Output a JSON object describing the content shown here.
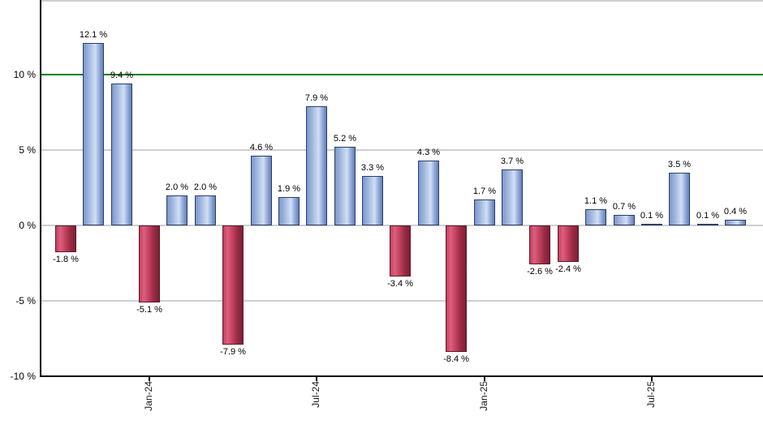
{
  "chart_data": {
    "type": "bar",
    "title": "",
    "xlabel": "",
    "ylabel": "",
    "unit": "%",
    "values": [
      -1.8,
      12.1,
      9.4,
      -5.1,
      2.0,
      2.0,
      -7.9,
      4.6,
      1.9,
      7.9,
      5.2,
      3.3,
      -3.4,
      4.3,
      -8.4,
      1.7,
      3.7,
      -2.6,
      -2.4,
      1.1,
      0.7,
      0.1,
      3.5,
      0.1,
      0.4
    ],
    "bar_labels": [
      "-1.8 %",
      "12.1 %",
      "9.4 %",
      "-5.1 %",
      "2.0 %",
      "2.0 %",
      "-7.9 %",
      "4.6 %",
      "1.9 %",
      "7.9 %",
      "5.2 %",
      "3.3 %",
      "-3.4 %",
      "4.3 %",
      "-8.4 %",
      "1.7 %",
      "3.7 %",
      "-2.6 %",
      "-2.4 %",
      "1.1 %",
      "0.7 %",
      "0.1 %",
      "3.5 %",
      "0.1 %",
      "0.4 %"
    ],
    "x_ticks": [
      {
        "bar_index": 3,
        "label": "Jan-24"
      },
      {
        "bar_index": 9,
        "label": "Jul-24"
      },
      {
        "bar_index": 15,
        "label": "Jan-25"
      },
      {
        "bar_index": 21,
        "label": "Jul-25"
      }
    ],
    "y_ticks": [
      {
        "value": 10,
        "label": "10 %"
      },
      {
        "value": 5,
        "label": "5 %"
      },
      {
        "value": 0,
        "label": "0 %"
      },
      {
        "value": -5,
        "label": "-5 %"
      },
      {
        "value": -10,
        "label": "-10 %"
      }
    ],
    "ylim": [
      -10,
      15
    ],
    "gridlines_at": [
      15,
      5,
      0,
      -5
    ],
    "marker_line": {
      "value": 10,
      "color": "#007f00"
    },
    "legend": "none",
    "grid": "horizontal",
    "colors": {
      "positive_fill_stops": [
        "#7d97cb",
        "#a3badf",
        "#d2dff5",
        "#93acdb",
        "#647fb5"
      ],
      "positive_fill_pos": [
        0,
        30,
        60,
        80,
        100
      ],
      "positive_border": "#2c3e6b",
      "negative_fill_stops": [
        "#c2405c",
        "#dd5f7e",
        "#c64463",
        "#9a2c45",
        "#7b2135"
      ],
      "negative_fill_pos": [
        0,
        22,
        45,
        72,
        100
      ],
      "negative_border": "#5e1a2c",
      "gridline": "#cfcfcf",
      "axis": "#000000",
      "background": "#ffffff"
    }
  }
}
